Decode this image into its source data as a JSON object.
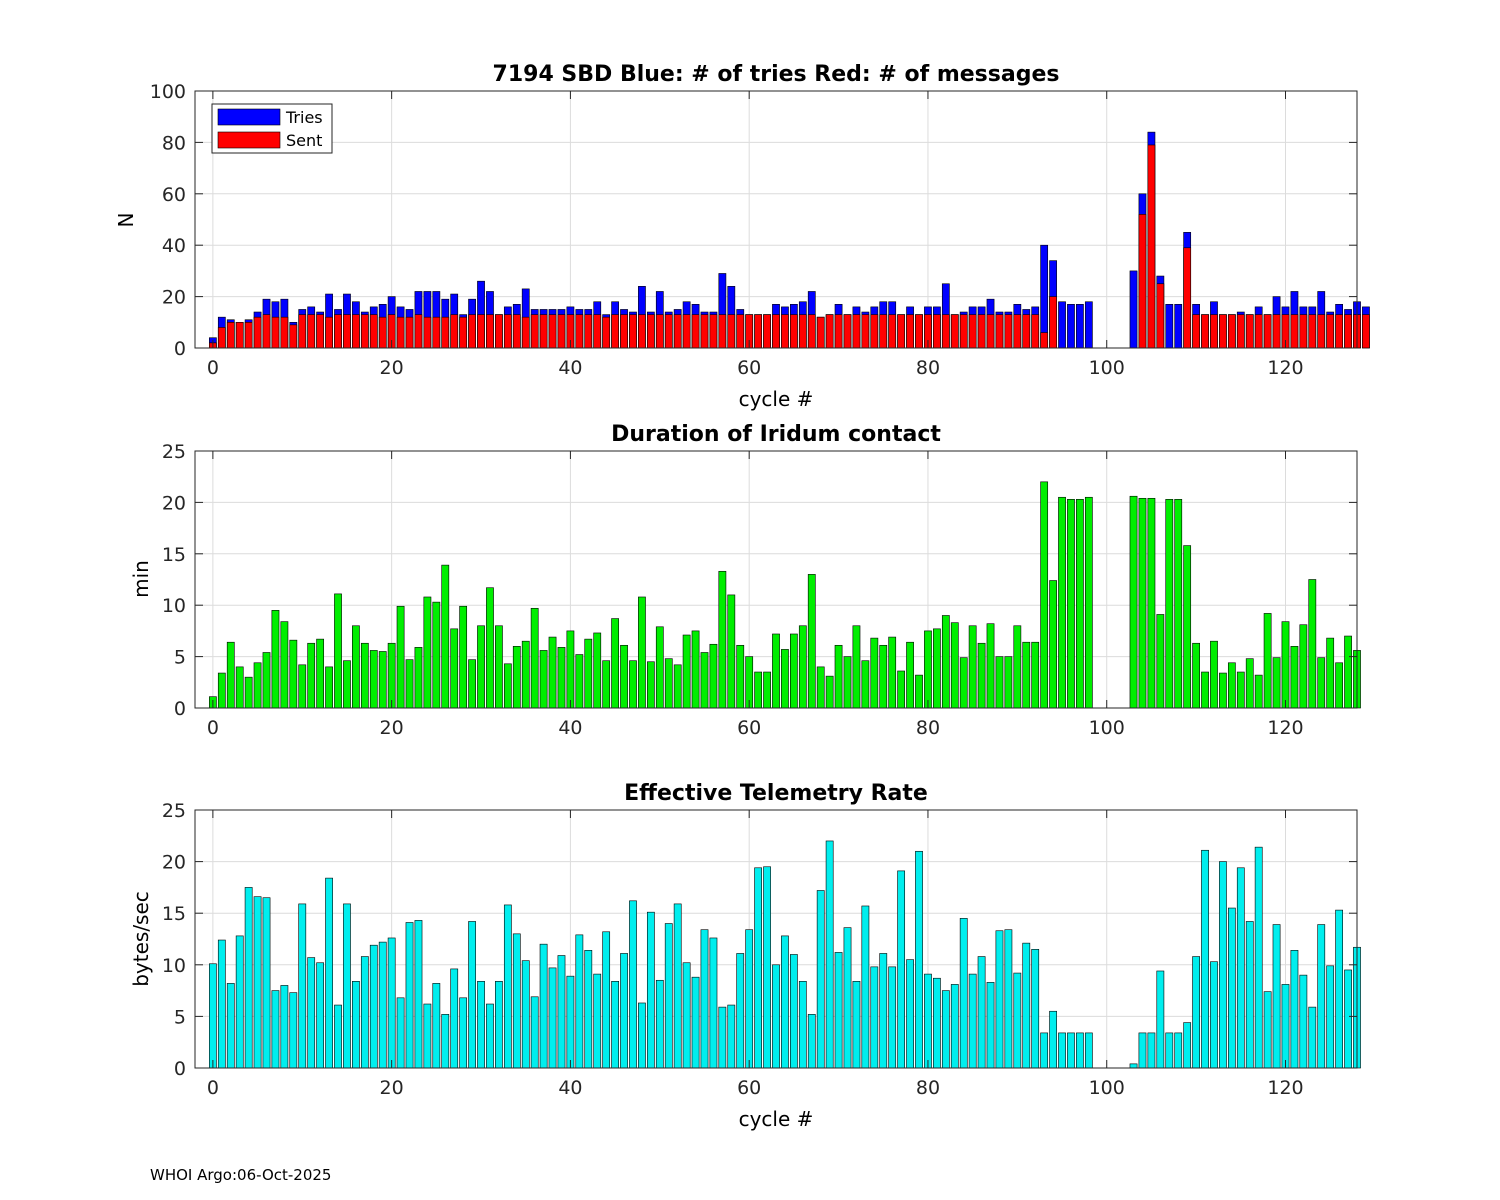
{
  "footer": "WHOI Argo:06-Oct-2025",
  "colors": {
    "tries": "#0000ff",
    "sent": "#ff0000",
    "duration": "#00ee00",
    "rate": "#00eeee"
  },
  "chart_data": [
    {
      "type": "bar",
      "title": "7194 SBD  Blue: # of tries   Red: # of messages",
      "xlabel": "cycle #",
      "ylabel": "N",
      "xlim": [
        -2,
        128
      ],
      "ylim": [
        0,
        100
      ],
      "xticks": [
        "0",
        "20",
        "40",
        "60",
        "80",
        "100",
        "120"
      ],
      "yticks": [
        "0",
        "20",
        "40",
        "60",
        "80",
        "100"
      ],
      "legend": {
        "position": "top-left",
        "entries": [
          "Tries",
          "Sent"
        ]
      },
      "cycles_start": 0,
      "series": [
        {
          "name": "Tries",
          "values": [
            4,
            12,
            11,
            10,
            11,
            14,
            19,
            18,
            19,
            10,
            15,
            16,
            14,
            21,
            15,
            21,
            18,
            14,
            16,
            17,
            20,
            16,
            15,
            22,
            22,
            22,
            19,
            21,
            13,
            19,
            26,
            22,
            13,
            16,
            17,
            23,
            15,
            15,
            15,
            15,
            16,
            15,
            15,
            18,
            13,
            18,
            15,
            14,
            24,
            14,
            22,
            14,
            15,
            18,
            17,
            14,
            14,
            29,
            24,
            15,
            13,
            13,
            13,
            17,
            16,
            17,
            18,
            22,
            12,
            13,
            17,
            13,
            16,
            14,
            16,
            18,
            18,
            13,
            16,
            13,
            16,
            16,
            25,
            13,
            14,
            16,
            16,
            19,
            14,
            14,
            17,
            15,
            16,
            40,
            34,
            18,
            17,
            17,
            18,
            0,
            0,
            0,
            0,
            30,
            60,
            84,
            28,
            17,
            17,
            45,
            17,
            13,
            18,
            13,
            13,
            14,
            13,
            16,
            13,
            20,
            16,
            22,
            16,
            16,
            22,
            14,
            17,
            15,
            18,
            16
          ]
        },
        {
          "name": "Sent",
          "values": [
            2,
            8,
            10,
            10,
            10,
            12,
            13,
            12,
            12,
            9,
            13,
            13,
            13,
            12,
            13,
            13,
            13,
            13,
            13,
            12,
            13,
            12,
            12,
            13,
            12,
            12,
            12,
            13,
            12,
            13,
            13,
            13,
            13,
            13,
            13,
            12,
            13,
            13,
            13,
            13,
            13,
            13,
            13,
            13,
            12,
            13,
            13,
            13,
            13,
            13,
            13,
            13,
            13,
            13,
            13,
            13,
            13,
            13,
            13,
            13,
            13,
            13,
            13,
            13,
            13,
            13,
            13,
            13,
            12,
            13,
            13,
            13,
            13,
            13,
            13,
            13,
            13,
            13,
            13,
            13,
            13,
            13,
            13,
            13,
            13,
            13,
            13,
            13,
            13,
            13,
            13,
            13,
            13,
            6,
            20,
            0,
            0,
            0,
            0,
            0,
            0,
            0,
            0,
            0,
            52,
            79,
            25,
            0,
            0,
            39,
            13,
            13,
            13,
            13,
            13,
            13,
            13,
            13,
            13,
            13,
            13,
            13,
            13,
            13,
            13,
            13,
            13,
            13,
            13,
            13
          ]
        }
      ]
    },
    {
      "type": "bar",
      "title": "Duration of Iridum contact",
      "xlabel": "",
      "ylabel": "min",
      "xlim": [
        -2,
        128
      ],
      "ylim": [
        0,
        25
      ],
      "xticks": [
        "0",
        "20",
        "40",
        "60",
        "80",
        "100",
        "120"
      ],
      "yticks": [
        "0",
        "5",
        "10",
        "15",
        "20",
        "25"
      ],
      "cycles_start": 0,
      "series": [
        {
          "name": "Duration",
          "values": [
            1.1,
            3.4,
            6.4,
            4,
            3,
            4.4,
            5.4,
            9.5,
            8.4,
            6.6,
            4.2,
            6.3,
            6.7,
            4,
            11.1,
            4.6,
            8,
            6.3,
            5.6,
            5.5,
            6.3,
            9.9,
            4.7,
            5.9,
            10.8,
            10.3,
            13.9,
            7.7,
            9.9,
            4.7,
            8,
            11.7,
            8,
            4.3,
            6,
            6.5,
            9.7,
            5.6,
            6.9,
            5.9,
            7.5,
            5.2,
            6.7,
            7.3,
            4.6,
            8.7,
            6.1,
            4.6,
            10.8,
            4.5,
            7.9,
            4.8,
            4.2,
            7.1,
            7.5,
            5.4,
            6.2,
            13.3,
            11,
            6.1,
            5,
            3.5,
            3.5,
            7.2,
            5.7,
            7.2,
            8,
            13,
            4,
            3.1,
            6.1,
            5,
            8,
            4.6,
            6.8,
            6.1,
            6.9,
            3.6,
            6.4,
            3.2,
            7.5,
            7.7,
            9,
            8.3,
            4.9,
            8,
            6.3,
            8.2,
            5,
            5,
            8,
            6.4,
            6.4,
            22,
            12.4,
            20.5,
            20.3,
            20.3,
            20.5,
            0,
            0,
            0,
            0,
            20.6,
            20.4,
            20.4,
            9.1,
            20.3,
            20.3,
            15.8,
            6.3,
            3.5,
            6.5,
            3.4,
            4.4,
            3.5,
            4.8,
            3.2,
            9.2,
            4.9,
            8.4,
            6,
            8.1,
            12.5,
            4.9,
            6.8,
            4.4,
            7,
            5.6
          ]
        }
      ]
    },
    {
      "type": "bar",
      "title": "Effective Telemetry Rate",
      "xlabel": "cycle #",
      "ylabel": "bytes/sec",
      "xlim": [
        -2,
        128
      ],
      "ylim": [
        0,
        25
      ],
      "xticks": [
        "0",
        "20",
        "40",
        "60",
        "80",
        "100",
        "120"
      ],
      "yticks": [
        "0",
        "5",
        "10",
        "15",
        "20",
        "25"
      ],
      "cycles_start": 0,
      "series": [
        {
          "name": "Rate",
          "values": [
            10.1,
            12.4,
            8.2,
            12.8,
            17.5,
            16.6,
            16.5,
            7.5,
            8,
            7.3,
            15.9,
            10.7,
            10.2,
            18.4,
            6.1,
            15.9,
            8.4,
            10.8,
            11.9,
            12.2,
            12.6,
            6.8,
            14.1,
            14.3,
            6.2,
            8.2,
            5.2,
            9.6,
            6.8,
            14.2,
            8.4,
            6.2,
            8.4,
            15.8,
            13,
            10.4,
            6.9,
            12,
            9.7,
            10.9,
            8.9,
            12.9,
            11.4,
            9.1,
            13.2,
            8.4,
            11.1,
            16.2,
            6.3,
            15.1,
            8.5,
            14,
            15.9,
            10.2,
            8.8,
            13.4,
            12.6,
            5.9,
            6.1,
            11.1,
            13.4,
            19.4,
            19.5,
            10,
            12.8,
            11,
            8.4,
            5.2,
            17.2,
            22,
            11.2,
            13.6,
            8.4,
            15.7,
            9.8,
            11.1,
            9.8,
            19.1,
            10.5,
            21,
            9.1,
            8.7,
            7.5,
            8.1,
            14.5,
            9.1,
            10.8,
            8.3,
            13.3,
            13.4,
            9.2,
            12.1,
            11.5,
            3.4,
            5.5,
            3.4,
            3.4,
            3.4,
            3.4,
            0,
            0,
            0,
            0,
            0.4,
            3.4,
            3.4,
            9.4,
            3.4,
            3.4,
            4.4,
            10.8,
            21.1,
            10.3,
            20,
            15.5,
            19.4,
            14.2,
            21.4,
            7.4,
            13.9,
            8.1,
            11.4,
            9,
            5.9,
            13.9,
            9.9,
            15.3,
            9.5,
            11.7
          ]
        }
      ]
    }
  ]
}
